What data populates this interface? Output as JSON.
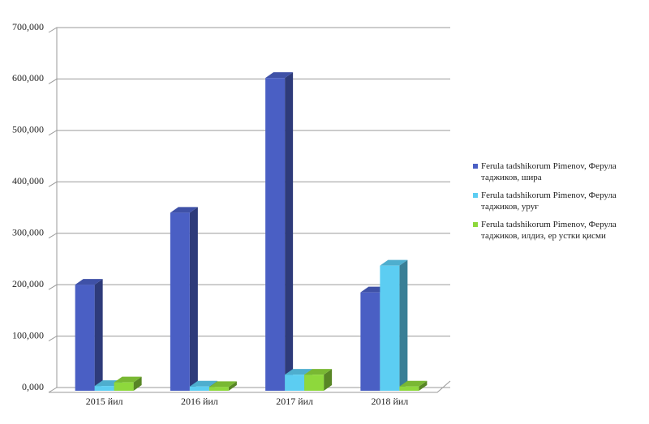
{
  "chart_data": {
    "type": "bar3d",
    "categories": [
      "2015 йил",
      "2016 йил",
      "2017 йил",
      "2018 йил"
    ],
    "series": [
      {
        "name": "Ferula tadshikorum Pimenov, Ферула таджиков, шира",
        "color": "#4a5fc4",
        "values": [
          200,
          340,
          602,
          185
        ]
      },
      {
        "name": "Ferula tadshikorum Pimenov, Ферула таджиков, уруғ",
        "color": "#5ccdf2",
        "values": [
          3,
          2,
          25,
          237
        ]
      },
      {
        "name": "Ferula tadshikorum Pimenov, Ферула таджиков, илдиз, ер устки қисми",
        "color": "#8ed83c",
        "values": [
          10,
          1,
          25,
          2
        ]
      }
    ],
    "ylim": [
      0,
      700
    ],
    "yticks": [
      {
        "value": 0,
        "label": "0,000"
      },
      {
        "value": 100,
        "label": "100,000"
      },
      {
        "value": 200,
        "label": "200,000"
      },
      {
        "value": 300,
        "label": "300,000"
      },
      {
        "value": 400,
        "label": "400,000"
      },
      {
        "value": 500,
        "label": "500,000"
      },
      {
        "value": 600,
        "label": "600,000"
      },
      {
        "value": 700,
        "label": "700,000"
      }
    ],
    "grid": true,
    "legend": "right"
  }
}
